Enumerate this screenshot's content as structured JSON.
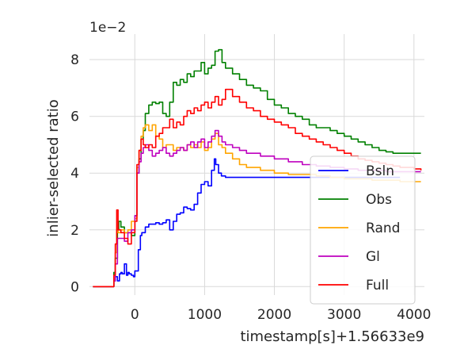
{
  "chart_data": {
    "type": "line",
    "title": "",
    "xlabel": "timestamp[s]",
    "x_offset_label": "+1.56633e9",
    "ylabel": "inlier-selected ratio",
    "y_scale_label": "1e−2",
    "xlim": [
      -650,
      4150
    ],
    "ylim": [
      -0.3,
      8.9
    ],
    "xticks": [
      0,
      1000,
      2000,
      3000,
      4000
    ],
    "yticks": [
      0,
      2,
      4,
      6,
      8
    ],
    "grid": true,
    "legend_position": "lower-right",
    "series": [
      {
        "name": "Bsln",
        "color": "#0000ff",
        "x": [
          -600,
          -330,
          -300,
          -280,
          -250,
          -220,
          -200,
          -180,
          -150,
          -120,
          -100,
          -80,
          -50,
          -20,
          0,
          50,
          80,
          100,
          130,
          150,
          200,
          250,
          300,
          350,
          400,
          450,
          500,
          550,
          600,
          650,
          700,
          750,
          800,
          850,
          900,
          950,
          1000,
          1050,
          1100,
          1140,
          1160,
          1200,
          1240,
          1300,
          1500,
          2000,
          2500,
          3000,
          3500,
          3800
        ],
        "y": [
          0,
          0,
          0.2,
          0.35,
          0.2,
          0.45,
          0.5,
          0.45,
          0.8,
          0.4,
          0.5,
          0.45,
          0.4,
          0.35,
          0.55,
          1.3,
          1.8,
          1.9,
          1.9,
          2.1,
          2.2,
          2.2,
          2.25,
          2.2,
          2.25,
          2.35,
          2.0,
          2.3,
          2.55,
          2.6,
          2.8,
          2.75,
          2.7,
          2.9,
          3.3,
          3.6,
          3.7,
          3.55,
          4.1,
          4.5,
          4.3,
          4.0,
          3.9,
          3.85,
          3.85,
          3.85,
          3.85,
          3.85,
          3.85,
          3.85
        ]
      },
      {
        "name": "Obs",
        "color": "#008000",
        "x": [
          -600,
          -330,
          -300,
          -280,
          -250,
          -230,
          -200,
          -150,
          -100,
          -50,
          0,
          30,
          60,
          90,
          120,
          150,
          200,
          250,
          300,
          350,
          400,
          450,
          500,
          550,
          600,
          650,
          700,
          750,
          800,
          850,
          900,
          950,
          1000,
          1050,
          1100,
          1150,
          1200,
          1250,
          1300,
          1400,
          1500,
          1600,
          1700,
          1800,
          1900,
          2000,
          2100,
          2200,
          2300,
          2400,
          2500,
          2600,
          2700,
          2800,
          2900,
          3000,
          3100,
          3200,
          3300,
          3400,
          3500,
          3600,
          3700,
          3800,
          3900,
          4000,
          4100
        ],
        "y": [
          0,
          0,
          0.5,
          1.0,
          2.0,
          2.3,
          2.1,
          1.9,
          1.9,
          1.8,
          2.5,
          4.0,
          4.5,
          5.2,
          5.5,
          6.1,
          6.4,
          6.5,
          6.45,
          6.5,
          6.1,
          6.0,
          6.5,
          7.2,
          7.1,
          7.3,
          7.2,
          7.5,
          7.4,
          7.6,
          7.6,
          7.9,
          7.5,
          7.7,
          7.8,
          8.3,
          8.35,
          7.9,
          7.7,
          7.5,
          7.3,
          7.1,
          7.0,
          6.9,
          6.6,
          6.4,
          6.3,
          6.1,
          6.0,
          5.9,
          5.7,
          5.6,
          5.6,
          5.5,
          5.4,
          5.3,
          5.2,
          5.1,
          5.0,
          4.9,
          4.8,
          4.75,
          4.7,
          4.7,
          4.7,
          4.7,
          4.7
        ]
      },
      {
        "name": "Rand",
        "color": "#ffa500",
        "x": [
          -600,
          -330,
          -300,
          -280,
          -260,
          -240,
          -200,
          -150,
          -100,
          -50,
          0,
          30,
          60,
          90,
          120,
          150,
          200,
          250,
          300,
          350,
          400,
          450,
          500,
          550,
          600,
          650,
          700,
          750,
          800,
          850,
          900,
          950,
          1000,
          1050,
          1100,
          1150,
          1200,
          1250,
          1300,
          1400,
          1500,
          1600,
          1800,
          2000,
          2200,
          2400,
          2600,
          2800,
          3000,
          3200,
          3400,
          3600,
          3800,
          4000,
          4100
        ],
        "y": [
          0,
          0,
          0.3,
          1.2,
          2.0,
          1.9,
          2.0,
          1.9,
          2.0,
          2.3,
          2.4,
          4.2,
          4.8,
          5.3,
          5.6,
          5.7,
          5.5,
          5.7,
          5.3,
          5.2,
          4.9,
          5.0,
          5.0,
          4.8,
          4.9,
          4.9,
          4.8,
          5.0,
          4.9,
          5.0,
          4.9,
          5.1,
          4.8,
          4.9,
          5.2,
          5.4,
          5.0,
          4.9,
          4.7,
          4.5,
          4.3,
          4.2,
          4.1,
          4.0,
          3.95,
          3.95,
          3.9,
          3.85,
          3.8,
          3.8,
          3.75,
          3.75,
          3.7,
          3.7,
          3.7
        ]
      },
      {
        "name": "Gl",
        "color": "#bf00bf",
        "x": [
          -600,
          -330,
          -300,
          -280,
          -250,
          -200,
          -150,
          -100,
          -50,
          0,
          30,
          60,
          90,
          120,
          150,
          200,
          250,
          300,
          350,
          400,
          450,
          500,
          550,
          600,
          650,
          700,
          750,
          800,
          850,
          900,
          950,
          1000,
          1050,
          1100,
          1150,
          1200,
          1250,
          1300,
          1400,
          1500,
          1600,
          1800,
          2000,
          2200,
          2400,
          2600,
          2800,
          3000,
          3200,
          3400,
          3600,
          3800,
          4000,
          4100
        ],
        "y": [
          0,
          0,
          0.2,
          0.8,
          1.7,
          1.7,
          1.6,
          1.9,
          2.0,
          2.5,
          4.0,
          4.4,
          4.7,
          4.9,
          5.0,
          4.8,
          4.6,
          4.7,
          4.8,
          4.9,
          4.7,
          4.6,
          4.7,
          4.8,
          4.9,
          4.8,
          5.0,
          5.1,
          4.9,
          5.1,
          5.2,
          4.9,
          5.1,
          5.3,
          5.5,
          5.3,
          5.1,
          5.0,
          4.9,
          4.8,
          4.7,
          4.6,
          4.5,
          4.4,
          4.3,
          4.25,
          4.2,
          4.15,
          4.1,
          4.1,
          4.05,
          4.05,
          4.05,
          4.05
        ]
      },
      {
        "name": "Full",
        "color": "#ff0000",
        "x": [
          -600,
          -330,
          -300,
          -280,
          -260,
          -240,
          -200,
          -150,
          -100,
          -50,
          0,
          30,
          60,
          90,
          120,
          150,
          200,
          250,
          300,
          350,
          400,
          450,
          500,
          550,
          600,
          650,
          700,
          750,
          800,
          850,
          900,
          950,
          1000,
          1050,
          1100,
          1150,
          1200,
          1250,
          1300,
          1400,
          1500,
          1600,
          1700,
          1800,
          1900,
          2000,
          2100,
          2200,
          2300,
          2400,
          2500,
          2600,
          2700,
          2800,
          2900,
          3000,
          3100,
          3200,
          3300,
          3400,
          3500,
          3600,
          3700,
          3800,
          3900,
          4000,
          4100
        ],
        "y": [
          0,
          0,
          0.4,
          1.5,
          2.7,
          2.0,
          1.9,
          1.7,
          1.5,
          1.9,
          2.3,
          4.3,
          4.8,
          5.2,
          5.0,
          4.9,
          5.0,
          4.9,
          5.3,
          5.4,
          5.6,
          5.6,
          5.9,
          5.6,
          5.8,
          5.7,
          6.0,
          6.2,
          6.1,
          6.3,
          6.2,
          6.4,
          6.5,
          6.3,
          6.5,
          6.7,
          6.4,
          6.6,
          6.95,
          6.7,
          6.5,
          6.3,
          6.2,
          6.0,
          5.9,
          5.8,
          5.7,
          5.6,
          5.4,
          5.3,
          5.2,
          5.1,
          5.0,
          4.9,
          4.8,
          4.7,
          4.6,
          4.5,
          4.45,
          4.4,
          4.35,
          4.3,
          4.25,
          4.2,
          4.2,
          4.15,
          4.1
        ]
      }
    ]
  }
}
